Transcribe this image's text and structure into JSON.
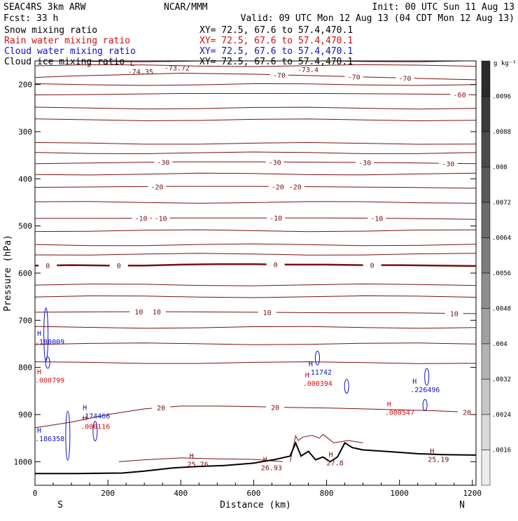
{
  "header": {
    "model": "SEAC4RS  3km ARW",
    "org": "NCAR/MMM",
    "init": "Init: 00 UTC Sun 11 Aug 13",
    "fcst": "Fcst:    33 h",
    "valid": "Valid: 09 UTC Mon 12 Aug 13 (04 CDT Mon 12 Aug 13)",
    "fields": [
      {
        "name": "Snow mixing ratio",
        "xy": "XY=  72.5, 67.6 to  57.4,470.1",
        "color": "#000000"
      },
      {
        "name": "Rain water mixing ratio",
        "xy": "XY=  72.5, 67.6 to  57.4,470.1",
        "color": "#d01010"
      },
      {
        "name": "Cloud water mixing ratio",
        "xy": "XY=  72.5, 67.6 to  57.4,470.1",
        "color": "#1010c8"
      },
      {
        "name": "Cloud ice mixing ratio",
        "xy": "XY=  72.5, 67.6 to  57.4,470.1",
        "color": "#000000"
      }
    ]
  },
  "colorbar": {
    "units": "g kg⁻¹",
    "ticks": [
      ".0096",
      ".0088",
      ".008",
      ".0072",
      ".0064",
      ".0056",
      ".0048",
      ".004",
      ".0032",
      ".0024",
      ".0016"
    ],
    "colors": [
      "#2b2b2b",
      "#3a3a3a",
      "#4a4a4a",
      "#5a5a5a",
      "#6b6b6b",
      "#7c7c7c",
      "#8e8e8e",
      "#a0a0a0",
      "#b3b3b3",
      "#c6c6c6",
      "#d9d9d9",
      "#ececec"
    ]
  },
  "chart_data": {
    "type": "line",
    "xlabel": "Distance (km)",
    "ylabel": "Pressure (hPa)",
    "xlim": [
      0,
      1210
    ],
    "ylim": [
      1050,
      150
    ],
    "x_ticks": [
      0,
      200,
      400,
      600,
      800,
      1000,
      1200
    ],
    "y_ticks": [
      200,
      300,
      400,
      500,
      600,
      700,
      800,
      900,
      1000
    ],
    "endpoint_labels": {
      "left": "S",
      "right": "N"
    },
    "contour_color": "#7a1010",
    "temperature_contours": [
      {
        "level": 0,
        "bold": true,
        "x": [
          0,
          100,
          200,
          300,
          400,
          500,
          600,
          700,
          800,
          900,
          1000,
          1100,
          1210
        ],
        "p": [
          584,
          583,
          584,
          584,
          582,
          581,
          581,
          582,
          582,
          583,
          583,
          584,
          585
        ],
        "labels": [
          {
            "text": "0",
            "x": 35
          },
          {
            "text": "0",
            "x": 230
          },
          {
            "text": "0",
            "x": 660
          },
          {
            "text": "0",
            "x": 925
          }
        ]
      },
      {
        "level": -70,
        "x": [
          0,
          100,
          200,
          300,
          400,
          500,
          600,
          700,
          800,
          900,
          1000,
          1100,
          1210
        ],
        "p": [
          185,
          182,
          180,
          178,
          176,
          177,
          178,
          180,
          182,
          184,
          186,
          188,
          190
        ],
        "labels": [
          {
            "text": "-70",
            "x": 670
          },
          {
            "text": "-70",
            "x": 875
          },
          {
            "text": "-70",
            "x": 1015
          }
        ]
      },
      {
        "level": -60,
        "x": [
          0,
          200,
          400,
          600,
          800,
          1000,
          1150,
          1210
        ],
        "p": [
          222,
          221,
          219,
          219,
          219,
          220,
          221,
          222
        ],
        "labels": [
          {
            "text": "-60",
            "x": 1165
          }
        ]
      },
      {
        "level": -30,
        "x": [
          0,
          200,
          400,
          600,
          800,
          1000,
          1210
        ],
        "p": [
          368,
          366,
          364,
          364,
          365,
          366,
          368
        ],
        "labels": [
          {
            "text": "-30",
            "x": 352
          },
          {
            "text": "-30",
            "x": 658
          },
          {
            "text": "-30",
            "x": 905
          },
          {
            "text": "-30",
            "x": 1134
          }
        ]
      },
      {
        "level": -20,
        "x": [
          0,
          200,
          400,
          600,
          800,
          1000,
          1210
        ],
        "p": [
          418,
          417,
          416,
          416,
          417,
          418,
          420
        ],
        "labels": [
          {
            "text": "-20",
            "x": 335
          },
          {
            "text": "-20",
            "x": 666
          },
          {
            "text": "-20",
            "x": 714
          }
        ]
      },
      {
        "level": -10,
        "x": [
          0,
          200,
          400,
          600,
          800,
          1000,
          1210
        ],
        "p": [
          484,
          484,
          483,
          483,
          483,
          484,
          486
        ],
        "labels": [
          {
            "text": "-10",
            "x": 291
          },
          {
            "text": "-10",
            "x": 345
          },
          {
            "text": "-10",
            "x": 661
          },
          {
            "text": "-10",
            "x": 938
          }
        ]
      },
      {
        "level": 10,
        "x": [
          0,
          200,
          400,
          600,
          800,
          1000,
          1210
        ],
        "p": [
          683,
          682,
          682,
          683,
          684,
          684,
          686
        ],
        "labels": [
          {
            "text": "10",
            "x": 285
          },
          {
            "text": "10",
            "x": 334
          },
          {
            "text": "10",
            "x": 637
          },
          {
            "text": "10",
            "x": 1150
          }
        ]
      },
      {
        "level": 20,
        "x": [
          0,
          100,
          200,
          300,
          400,
          500,
          600,
          700,
          800,
          900,
          1000,
          1100,
          1210
        ],
        "p": [
          928,
          916,
          900,
          888,
          882,
          882,
          883,
          885,
          886,
          888,
          890,
          892,
          896
        ],
        "labels": [
          {
            "text": "20",
            "x": 346
          },
          {
            "text": "20",
            "x": 659
          },
          {
            "text": "20",
            "x": 1185
          }
        ]
      }
    ],
    "terrain": {
      "x": [
        0,
        120,
        240,
        300,
        380,
        450,
        520,
        600,
        660,
        700,
        715,
        730,
        750,
        770,
        790,
        810,
        830,
        850,
        870,
        900,
        960,
        1050,
        1120,
        1210
      ],
      "p": [
        1025,
        1025,
        1024,
        1020,
        1013,
        1010,
        1008,
        1003,
        995,
        988,
        960,
        988,
        978,
        996,
        990,
        1000,
        990,
        960,
        970,
        975,
        978,
        983,
        985,
        986
      ]
    },
    "min_max_labels": [
      {
        "letter": "L",
        "value": "-74.35",
        "x": 255,
        "p": 168,
        "color": "#7a1010"
      },
      {
        "letter": "L",
        "value": "-73.72",
        "x": 355,
        "p": 160,
        "color": "#7a1010"
      },
      {
        "letter": "",
        "value": "-73.4",
        "x": 720,
        "p": 163,
        "color": "#7a1010"
      },
      {
        "letter": "H",
        "value": "25.76",
        "x": 418,
        "p": 1000,
        "color": "#7a1010"
      },
      {
        "letter": "H",
        "value": "26.93",
        "x": 620,
        "p": 1008,
        "color": "#7a1010"
      },
      {
        "letter": "H",
        "value": "27.8",
        "x": 800,
        "p": 997,
        "color": "#7a1010"
      },
      {
        "letter": "H",
        "value": "25.19",
        "x": 1078,
        "p": 990,
        "color": "#7a1010"
      },
      {
        "letter": "H",
        "value": ".000799",
        "x": 0,
        "p": 822,
        "color": "#d01010"
      },
      {
        "letter": "H",
        "value": ".000394",
        "x": 735,
        "p": 829,
        "color": "#d01010"
      },
      {
        "letter": "H",
        "value": ".000547",
        "x": 960,
        "p": 890,
        "color": "#d01010"
      },
      {
        "letter": "H",
        "value": ".000116",
        "x": 125,
        "p": 920,
        "color": "#d01010"
      },
      {
        "letter": "H",
        "value": ".180009",
        "x": 0,
        "p": 740,
        "color": "#1010c8"
      },
      {
        "letter": "H",
        "value": ".11742",
        "x": 745,
        "p": 805,
        "color": "#1010c8"
      },
      {
        "letter": "H",
        "value": ".226496",
        "x": 1030,
        "p": 842,
        "color": "#1010c8"
      },
      {
        "letter": "H",
        "value": ".174466",
        "x": 125,
        "p": 898,
        "color": "#1010c8"
      },
      {
        "letter": "H",
        "value": ".186358",
        "x": 0,
        "p": 946,
        "color": "#1010c8"
      }
    ]
  }
}
